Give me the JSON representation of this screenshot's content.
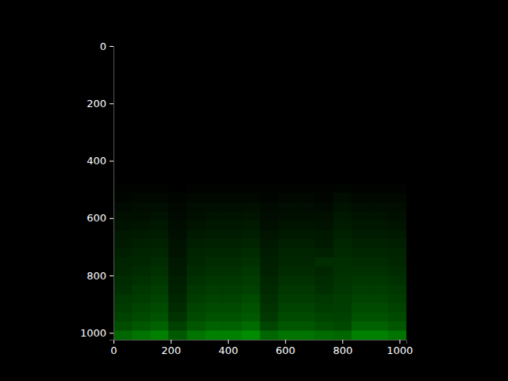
{
  "chart_data": {
    "type": "heatmap",
    "color": "#00ff00",
    "x": [
      32,
      96,
      160,
      224,
      288,
      352,
      416,
      480,
      544,
      608,
      672,
      736,
      800,
      864,
      928,
      992
    ],
    "y": [
      16,
      48,
      80,
      112,
      144,
      176,
      208,
      240,
      272,
      304,
      336,
      368,
      400,
      432,
      464,
      496,
      528,
      560,
      592,
      624,
      656,
      688,
      720,
      752,
      784,
      816,
      848,
      880,
      912,
      944,
      976,
      1008
    ],
    "cells": [
      [
        0,
        0,
        0,
        0,
        0,
        0,
        0,
        0,
        0,
        0,
        0,
        0,
        0,
        0,
        0,
        0
      ],
      [
        0,
        0,
        0,
        0,
        0,
        0,
        0,
        0,
        0,
        0,
        0,
        0,
        0,
        0,
        0,
        0
      ],
      [
        0,
        0,
        0,
        0,
        0,
        0,
        0,
        0,
        0,
        0,
        0,
        0,
        0,
        0,
        0,
        0
      ],
      [
        0,
        0,
        0,
        0,
        0,
        0,
        0,
        0,
        0,
        0,
        0,
        0,
        0,
        0,
        0,
        0
      ],
      [
        0,
        0,
        0,
        0,
        0,
        0,
        0,
        0,
        0,
        0,
        0,
        0,
        0,
        0,
        0,
        0
      ],
      [
        0,
        0,
        0,
        0,
        0,
        0,
        0,
        0,
        0,
        0,
        0,
        0,
        0,
        0,
        0,
        0
      ],
      [
        0,
        0,
        0,
        0,
        0,
        0,
        0,
        0,
        0,
        0,
        0,
        0,
        0,
        0,
        0,
        0
      ],
      [
        0,
        0,
        0,
        0,
        0,
        0,
        0,
        0,
        0,
        0,
        0,
        0,
        0,
        0,
        0,
        0
      ],
      [
        0,
        0,
        0,
        0,
        0,
        0,
        0,
        0,
        0,
        0,
        0,
        0,
        0,
        0,
        0,
        0
      ],
      [
        0,
        0,
        0,
        0,
        0,
        0,
        0,
        0,
        0,
        0,
        0,
        0,
        0,
        0,
        0,
        0
      ],
      [
        0,
        0,
        0,
        0,
        0,
        0,
        0,
        0,
        0,
        0,
        0,
        0,
        0,
        0,
        0,
        0
      ],
      [
        0,
        0,
        0,
        0,
        0,
        0,
        0,
        0,
        0,
        0,
        0,
        0,
        0,
        0,
        0,
        0
      ],
      [
        0,
        0,
        0,
        0,
        0,
        0,
        0,
        0,
        0,
        0,
        0,
        0,
        0,
        0,
        0,
        0
      ],
      [
        0,
        0,
        0,
        0,
        0,
        0,
        0,
        0,
        0,
        0,
        0,
        0,
        0,
        0,
        0,
        0
      ],
      [
        0,
        0,
        0,
        0,
        0,
        0,
        0,
        0,
        0,
        0,
        0,
        0,
        0,
        0,
        0,
        0
      ],
      [
        0.01,
        0.01,
        0.01,
        0,
        0.01,
        0.01,
        0.01,
        0.01,
        0.01,
        0.01,
        0.01,
        0.01,
        0.02,
        0.01,
        0.01,
        0.01
      ],
      [
        0.02,
        0.03,
        0.03,
        0.02,
        0.03,
        0.03,
        0.03,
        0.03,
        0.02,
        0.03,
        0.03,
        0.02,
        0.05,
        0.03,
        0.03,
        0.03
      ],
      [
        0.04,
        0.05,
        0.05,
        0.03,
        0.05,
        0.05,
        0.05,
        0.06,
        0.04,
        0.05,
        0.05,
        0.04,
        0.07,
        0.05,
        0.05,
        0.05
      ],
      [
        0.06,
        0.06,
        0.07,
        0.04,
        0.06,
        0.07,
        0.07,
        0.08,
        0.05,
        0.06,
        0.06,
        0.06,
        0.09,
        0.07,
        0.07,
        0.06
      ],
      [
        0.07,
        0.08,
        0.09,
        0.05,
        0.08,
        0.09,
        0.09,
        0.1,
        0.06,
        0.08,
        0.08,
        0.07,
        0.11,
        0.09,
        0.09,
        0.08
      ],
      [
        0.09,
        0.1,
        0.11,
        0.06,
        0.1,
        0.11,
        0.11,
        0.12,
        0.08,
        0.1,
        0.1,
        0.09,
        0.13,
        0.11,
        0.11,
        0.1
      ],
      [
        0.1,
        0.12,
        0.13,
        0.07,
        0.12,
        0.13,
        0.13,
        0.14,
        0.09,
        0.12,
        0.12,
        0.1,
        0.15,
        0.13,
        0.13,
        0.12
      ],
      [
        0.12,
        0.14,
        0.15,
        0.08,
        0.14,
        0.15,
        0.15,
        0.17,
        0.11,
        0.14,
        0.14,
        0.13,
        0.16,
        0.15,
        0.15,
        0.14
      ],
      [
        0.14,
        0.15,
        0.17,
        0.09,
        0.15,
        0.17,
        0.17,
        0.19,
        0.12,
        0.15,
        0.15,
        0.18,
        0.18,
        0.17,
        0.17,
        0.15
      ],
      [
        0.15,
        0.17,
        0.19,
        0.1,
        0.17,
        0.19,
        0.19,
        0.21,
        0.13,
        0.17,
        0.17,
        0.15,
        0.19,
        0.19,
        0.19,
        0.17
      ],
      [
        0.17,
        0.19,
        0.21,
        0.12,
        0.19,
        0.21,
        0.21,
        0.23,
        0.15,
        0.19,
        0.19,
        0.17,
        0.2,
        0.21,
        0.21,
        0.19
      ],
      [
        0.18,
        0.21,
        0.23,
        0.13,
        0.21,
        0.23,
        0.23,
        0.25,
        0.16,
        0.21,
        0.21,
        0.18,
        0.21,
        0.23,
        0.23,
        0.21
      ],
      [
        0.21,
        0.23,
        0.26,
        0.15,
        0.23,
        0.26,
        0.26,
        0.29,
        0.18,
        0.23,
        0.23,
        0.21,
        0.23,
        0.26,
        0.26,
        0.23
      ],
      [
        0.23,
        0.26,
        0.29,
        0.17,
        0.26,
        0.29,
        0.29,
        0.32,
        0.2,
        0.26,
        0.26,
        0.23,
        0.24,
        0.29,
        0.29,
        0.26
      ],
      [
        0.26,
        0.29,
        0.32,
        0.2,
        0.29,
        0.32,
        0.32,
        0.35,
        0.22,
        0.29,
        0.29,
        0.26,
        0.25,
        0.32,
        0.32,
        0.29
      ],
      [
        0.3,
        0.34,
        0.38,
        0.25,
        0.34,
        0.38,
        0.38,
        0.42,
        0.27,
        0.34,
        0.34,
        0.3,
        0.28,
        0.38,
        0.38,
        0.34
      ],
      [
        0.4,
        0.45,
        0.5,
        0.35,
        0.45,
        0.5,
        0.5,
        0.55,
        0.4,
        0.45,
        0.45,
        0.42,
        0.4,
        0.5,
        0.5,
        0.45
      ]
    ],
    "xlim": [
      0,
      1024
    ],
    "ylim": [
      1024,
      0
    ],
    "xticks": [
      0,
      200,
      400,
      600,
      800,
      1000
    ],
    "yticks": [
      0,
      200,
      400,
      600,
      800,
      1000
    ]
  }
}
